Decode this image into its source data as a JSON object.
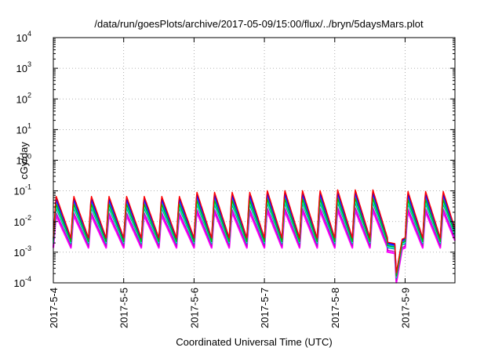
{
  "chart_data": {
    "type": "line",
    "title": "/data/run/goesPlots/archive/2017-05-09/15:00/flux/../bryn/5daysMars.plot",
    "xlabel": "Coordinated Universal Time (UTC)",
    "ylabel": "cGy/day",
    "yscale": "log",
    "ylim": [
      0.0001,
      10000
    ],
    "xlim": [
      "2017-05-04T00:00",
      "2017-05-09T17:00"
    ],
    "grid": true,
    "y_ticks": [
      {
        "base": "10",
        "exp": "-4",
        "value": 0.0001
      },
      {
        "base": "10",
        "exp": "-3",
        "value": 0.001
      },
      {
        "base": "10",
        "exp": "-2",
        "value": 0.01
      },
      {
        "base": "10",
        "exp": "-1",
        "value": 0.1
      },
      {
        "base": "10",
        "exp": "0",
        "value": 1
      },
      {
        "base": "10",
        "exp": "1",
        "value": 10
      },
      {
        "base": "10",
        "exp": "2",
        "value": 100
      },
      {
        "base": "10",
        "exp": "3",
        "value": 1000
      },
      {
        "base": "10",
        "exp": "4",
        "value": 10000
      }
    ],
    "x_ticks": [
      {
        "label": "2017-5-4",
        "value": "2017-05-04T00:00"
      },
      {
        "label": "2017-5-5",
        "value": "2017-05-05T00:00"
      },
      {
        "label": "2017-5-6",
        "value": "2017-05-06T00:00"
      },
      {
        "label": "2017-5-7",
        "value": "2017-05-07T00:00"
      },
      {
        "label": "2017-5-8",
        "value": "2017-05-08T00:00"
      },
      {
        "label": "2017-5-9",
        "value": "2017-05-09T00:00"
      }
    ],
    "series_colors": [
      "#ff00ff",
      "#cc00cc",
      "#00a0a0",
      "#00ffff",
      "#2080ff",
      "#3030ff",
      "#0000ff",
      "#00c000",
      "#ff0000"
    ],
    "series_offsets": [
      0.18,
      0.3,
      0.5,
      0.62,
      0.8,
      0.9,
      1.0,
      0.7,
      1.1
    ],
    "sawtooth": {
      "period_hours": 6,
      "peak": 0.06,
      "trough": 0.0025,
      "peak_amplitude_by_day": [
        0.055,
        0.055,
        0.075,
        0.085,
        0.09,
        0.08
      ],
      "gap_start": "2017-05-08T18:00",
      "gap_end": "2017-05-09T00:00",
      "gap_values": [
        0.002,
        0.0018,
        0.0002,
        0.0025
      ],
      "gap_times": [
        "2017-05-08T18:00",
        "2017-05-08T20:30",
        "2017-05-08T21:00",
        "2017-05-08T23:00"
      ]
    }
  }
}
